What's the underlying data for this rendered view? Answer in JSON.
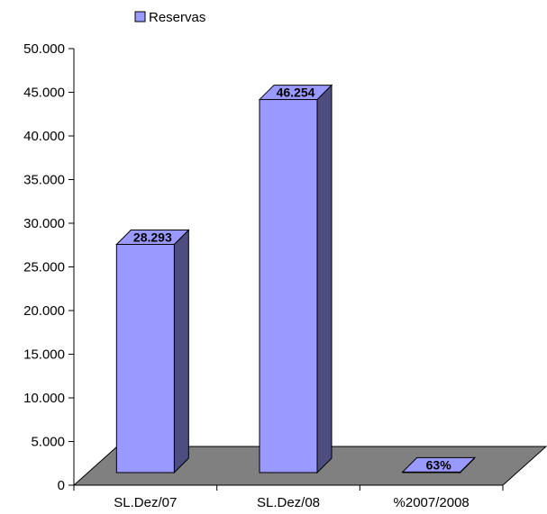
{
  "chart_data": {
    "type": "bar",
    "categories": [
      "SL.Dez/07",
      "SL.Dez/08",
      "%2007/2008"
    ],
    "series": [
      {
        "name": "Reservas",
        "values": [
          28293,
          46254,
          63
        ]
      }
    ],
    "data_labels": [
      "28.293",
      "46.254",
      "63%"
    ],
    "y_ticks": [
      "0",
      "5.000",
      "10.000",
      "15.000",
      "20.000",
      "25.000",
      "30.000",
      "35.000",
      "40.000",
      "45.000",
      "50.000"
    ],
    "ylim": [
      0,
      50000
    ],
    "legend": {
      "position": "top-left",
      "entries": [
        "Reservas"
      ]
    },
    "grid": false,
    "three_d": true,
    "colors": {
      "bar_front": "#9999ff",
      "bar_side": "#4d4d80",
      "bar_top": "#9999ff",
      "floor": "#808080",
      "outline": "#000000"
    }
  }
}
